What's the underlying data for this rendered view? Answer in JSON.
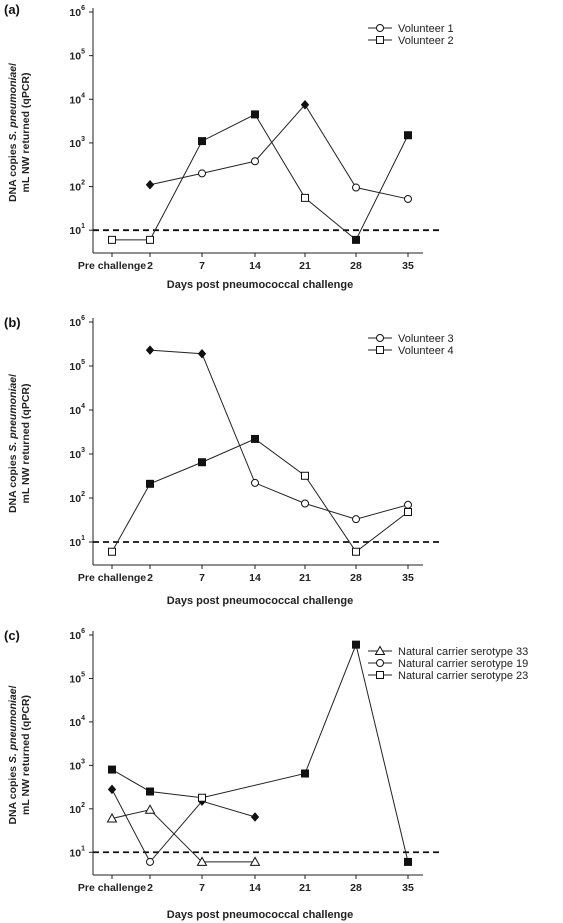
{
  "chart_data": [
    {
      "type": "line",
      "panel_label": "(a)",
      "ylabel_line1_pre": "DNA copies ",
      "ylabel_line1_italic": "S. pneumoniae",
      "ylabel_line1_post": "/",
      "ylabel_line2": "mL NW returned (qPCR)",
      "xlabel": "Days post pneumococcal challenge",
      "categories": [
        "Pre challenge",
        "2",
        "7",
        "14",
        "21",
        "28",
        "35"
      ],
      "y_scale": "log",
      "ylim": [
        3,
        1000000
      ],
      "y_ticks": [
        10,
        100,
        1000,
        10000,
        100000,
        1000000
      ],
      "y_tick_labels": [
        {
          "base": "10",
          "exp": "1"
        },
        {
          "base": "10",
          "exp": "2"
        },
        {
          "base": "10",
          "exp": "3"
        },
        {
          "base": "10",
          "exp": "4"
        },
        {
          "base": "10",
          "exp": "5"
        },
        {
          "base": "10",
          "exp": "6"
        }
      ],
      "threshold": 10,
      "legend_position": "top-right",
      "series": [
        {
          "name": "Volunteer 1",
          "marker": "circle",
          "points": [
            {
              "cat": 1,
              "y": 110,
              "filled": true,
              "shape": "diamond"
            },
            {
              "cat": 2,
              "y": 200,
              "filled": false,
              "shape": "circle"
            },
            {
              "cat": 3,
              "y": 380,
              "filled": false,
              "shape": "circle"
            },
            {
              "cat": 4,
              "y": 7500,
              "filled": true,
              "shape": "diamond"
            },
            {
              "cat": 5,
              "y": 95,
              "filled": false,
              "shape": "circle"
            },
            {
              "cat": 6,
              "y": 52,
              "filled": false,
              "shape": "circle"
            }
          ]
        },
        {
          "name": "Volunteer 2",
          "marker": "square",
          "points": [
            {
              "cat": 0,
              "y": 6,
              "filled": false,
              "shape": "square"
            },
            {
              "cat": 1,
              "y": 6,
              "filled": false,
              "shape": "square"
            },
            {
              "cat": 2,
              "y": 1100,
              "filled": true,
              "shape": "square"
            },
            {
              "cat": 3,
              "y": 4500,
              "filled": true,
              "shape": "square"
            },
            {
              "cat": 4,
              "y": 55,
              "filled": false,
              "shape": "square"
            },
            {
              "cat": 5,
              "y": 6,
              "filled": true,
              "shape": "square"
            },
            {
              "cat": 6,
              "y": 1500,
              "filled": true,
              "shape": "square"
            }
          ]
        }
      ]
    },
    {
      "type": "line",
      "panel_label": "(b)",
      "ylabel_line1_pre": "DNA copies ",
      "ylabel_line1_italic": "S. pneumoniae",
      "ylabel_line1_post": "/",
      "ylabel_line2": "mL NW returned (qPCR)",
      "xlabel": "Days post pneumococcal challenge",
      "categories": [
        "Pre challenge",
        "2",
        "7",
        "14",
        "21",
        "28",
        "35"
      ],
      "y_scale": "log",
      "ylim": [
        3,
        1000000
      ],
      "y_ticks": [
        10,
        100,
        1000,
        10000,
        100000,
        1000000
      ],
      "y_tick_labels": [
        {
          "base": "10",
          "exp": "1"
        },
        {
          "base": "10",
          "exp": "2"
        },
        {
          "base": "10",
          "exp": "3"
        },
        {
          "base": "10",
          "exp": "4"
        },
        {
          "base": "10",
          "exp": "5"
        },
        {
          "base": "10",
          "exp": "6"
        }
      ],
      "threshold": 10,
      "legend_position": "top-right",
      "series": [
        {
          "name": "Volunteer 3",
          "marker": "circle",
          "points": [
            {
              "cat": 1,
              "y": 230000,
              "filled": true,
              "shape": "diamond"
            },
            {
              "cat": 2,
              "y": 190000,
              "filled": true,
              "shape": "diamond"
            },
            {
              "cat": 3,
              "y": 220,
              "filled": false,
              "shape": "circle"
            },
            {
              "cat": 4,
              "y": 75,
              "filled": false,
              "shape": "circle"
            },
            {
              "cat": 5,
              "y": 33,
              "filled": false,
              "shape": "circle"
            },
            {
              "cat": 6,
              "y": 70,
              "filled": false,
              "shape": "circle"
            }
          ]
        },
        {
          "name": "Volunteer 4",
          "marker": "square",
          "points": [
            {
              "cat": 0,
              "y": 6,
              "filled": false,
              "shape": "square"
            },
            {
              "cat": 1,
              "y": 210,
              "filled": true,
              "shape": "square"
            },
            {
              "cat": 2,
              "y": 650,
              "filled": true,
              "shape": "square"
            },
            {
              "cat": 3,
              "y": 2200,
              "filled": true,
              "shape": "square"
            },
            {
              "cat": 4,
              "y": 320,
              "filled": false,
              "shape": "square"
            },
            {
              "cat": 5,
              "y": 6,
              "filled": false,
              "shape": "square"
            },
            {
              "cat": 6,
              "y": 48,
              "filled": false,
              "shape": "square"
            }
          ]
        }
      ]
    },
    {
      "type": "line",
      "panel_label": "(c)",
      "ylabel_line1_pre": "DNA copies ",
      "ylabel_line1_italic": "S. pneumoniae",
      "ylabel_line1_post": "/",
      "ylabel_line2": "mL NW returned (qPCR)",
      "xlabel": "Days post pneumococcal challenge",
      "categories": [
        "Pre challenge",
        "2",
        "7",
        "14",
        "21",
        "28",
        "35"
      ],
      "y_scale": "log",
      "ylim": [
        3,
        1000000
      ],
      "y_ticks": [
        10,
        100,
        1000,
        10000,
        100000,
        1000000
      ],
      "y_tick_labels": [
        {
          "base": "10",
          "exp": "1"
        },
        {
          "base": "10",
          "exp": "2"
        },
        {
          "base": "10",
          "exp": "3"
        },
        {
          "base": "10",
          "exp": "4"
        },
        {
          "base": "10",
          "exp": "5"
        },
        {
          "base": "10",
          "exp": "6"
        }
      ],
      "threshold": 10,
      "legend_position": "top-right",
      "series": [
        {
          "name": "Natural carrier serotype 33",
          "marker": "triangle",
          "points": [
            {
              "cat": 0,
              "y": 60,
              "filled": false,
              "shape": "triangle"
            },
            {
              "cat": 1,
              "y": 95,
              "filled": false,
              "shape": "triangle"
            },
            {
              "cat": 2,
              "y": 6,
              "filled": false,
              "shape": "triangle"
            },
            {
              "cat": 3,
              "y": 6,
              "filled": false,
              "shape": "triangle"
            }
          ]
        },
        {
          "name": "Natural carrier serotype 19",
          "marker": "circle",
          "points": [
            {
              "cat": 0,
              "y": 280,
              "filled": true,
              "shape": "diamond"
            },
            {
              "cat": 1,
              "y": 6,
              "filled": false,
              "shape": "circle"
            },
            {
              "cat": 2,
              "y": 150,
              "filled": true,
              "shape": "diamond"
            },
            {
              "cat": 3,
              "y": 65,
              "filled": true,
              "shape": "diamond"
            }
          ]
        },
        {
          "name": "Natural carrier serotype 23",
          "marker": "square",
          "points": [
            {
              "cat": 0,
              "y": 800,
              "filled": true,
              "shape": "square"
            },
            {
              "cat": 1,
              "y": 250,
              "filled": true,
              "shape": "square"
            },
            {
              "cat": 2,
              "y": 180,
              "filled": false,
              "shape": "square"
            },
            {
              "cat": 4,
              "y": 650,
              "filled": true,
              "shape": "square"
            },
            {
              "cat": 5,
              "y": 600000,
              "filled": true,
              "shape": "square"
            },
            {
              "cat": 6,
              "y": 6,
              "filled": true,
              "shape": "square"
            }
          ]
        }
      ]
    }
  ]
}
